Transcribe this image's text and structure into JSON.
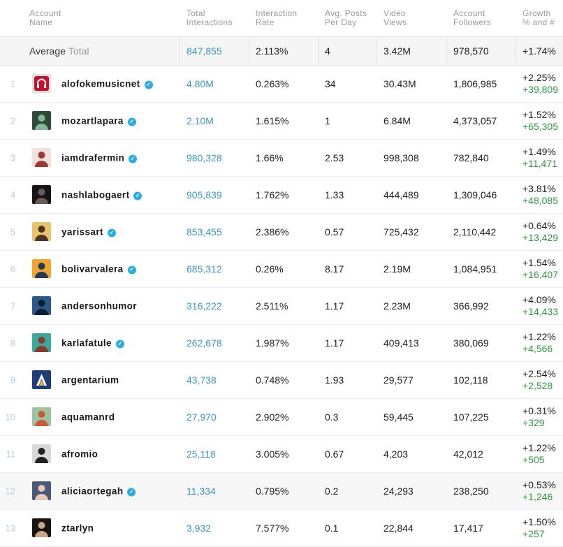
{
  "headers": [
    {
      "l1": "Account",
      "l2": "Name"
    },
    {
      "l1": "Total",
      "l2": "Interactions"
    },
    {
      "l1": "Interaction",
      "l2": "Rate"
    },
    {
      "l1": "Avg. Posts",
      "l2": "Per Day"
    },
    {
      "l1": "Video",
      "l2": "Views"
    },
    {
      "l1": "Account",
      "l2": "Followers"
    },
    {
      "l1": "Growth",
      "l2": "% and #"
    }
  ],
  "average": {
    "label": "Average",
    "sub": "Total",
    "interactions": "847,855",
    "rate": "2.113%",
    "posts": "4",
    "views": "3.42M",
    "followers": "978,570",
    "growth": "+1.74%"
  },
  "rows": [
    {
      "rank": "1",
      "name": "alofokemusicnet",
      "verified": true,
      "interactions": "4.80M",
      "rate": "0.263%",
      "posts": "34",
      "views": "30.43M",
      "followers": "1,806,985",
      "growth_pct": "+2.25%",
      "growth_num": "+39,809",
      "avatar": {
        "bg": "#e0e0e0",
        "fg": "#c8102e",
        "icon": "headphones-icon"
      }
    },
    {
      "rank": "2",
      "name": "mozartlapara",
      "verified": true,
      "interactions": "2.10M",
      "rate": "1.615%",
      "posts": "1",
      "views": "6.84M",
      "followers": "4,373,057",
      "growth_pct": "+1.52%",
      "growth_num": "+65,305",
      "avatar": {
        "bg": "#2f4a3a",
        "fg": "#7fb89a",
        "icon": "person-icon"
      }
    },
    {
      "rank": "3",
      "name": "iamdrafermin",
      "verified": true,
      "interactions": "980,328",
      "rate": "1.66%",
      "posts": "2.53",
      "views": "998,308",
      "followers": "782,840",
      "growth_pct": "+1.49%",
      "growth_num": "+11,471",
      "avatar": {
        "bg": "#f4e2da",
        "fg": "#a03a3a",
        "icon": "person-icon"
      }
    },
    {
      "rank": "4",
      "name": "nashlabogaert",
      "verified": true,
      "interactions": "905,839",
      "rate": "1.762%",
      "posts": "1.33",
      "views": "444,489",
      "followers": "1,309,046",
      "growth_pct": "+3.81%",
      "growth_num": "+48,085",
      "avatar": {
        "bg": "#151515",
        "fg": "#6a5a55",
        "icon": "person-icon"
      }
    },
    {
      "rank": "5",
      "name": "yarissart",
      "verified": true,
      "interactions": "853,455",
      "rate": "2.386%",
      "posts": "0.57",
      "views": "725,432",
      "followers": "2,110,442",
      "growth_pct": "+0.64%",
      "growth_num": "+13,429",
      "avatar": {
        "bg": "#e8c36a",
        "fg": "#4a3526",
        "icon": "person-icon"
      }
    },
    {
      "rank": "6",
      "name": "bolivarvalera",
      "verified": true,
      "interactions": "685,312",
      "rate": "0.26%",
      "posts": "8.17",
      "views": "2.19M",
      "followers": "1,084,951",
      "growth_pct": "+1.54%",
      "growth_num": "+16,407",
      "avatar": {
        "bg": "#f2a52a",
        "fg": "#1f3a5a",
        "icon": "person-icon"
      }
    },
    {
      "rank": "7",
      "name": "andersonhumor",
      "verified": false,
      "interactions": "316,222",
      "rate": "2.511%",
      "posts": "1.17",
      "views": "2.23M",
      "followers": "366,992",
      "growth_pct": "+4.09%",
      "growth_num": "+14,433",
      "avatar": {
        "bg": "#2a5a8a",
        "fg": "#0e1e2e",
        "icon": "person-icon"
      }
    },
    {
      "rank": "8",
      "name": "karlafatule",
      "verified": true,
      "interactions": "262,678",
      "rate": "1.987%",
      "posts": "1.17",
      "views": "409,413",
      "followers": "380,069",
      "growth_pct": "+1.22%",
      "growth_num": "+4,566",
      "avatar": {
        "bg": "#3aa89a",
        "fg": "#8a3a2a",
        "icon": "person-icon"
      }
    },
    {
      "rank": "9",
      "name": "argentarium",
      "verified": false,
      "interactions": "43,738",
      "rate": "0.748%",
      "posts": "1.93",
      "views": "29,577",
      "followers": "102,118",
      "growth_pct": "+2.54%",
      "growth_num": "+2,528",
      "avatar": {
        "bg": "#1c3d7a",
        "fg": "#f0b12a",
        "icon": "letter-a-icon"
      }
    },
    {
      "rank": "10",
      "name": "aquamanrd",
      "verified": false,
      "interactions": "27,970",
      "rate": "2.902%",
      "posts": "0.3",
      "views": "59,445",
      "followers": "107,225",
      "growth_pct": "+0.31%",
      "growth_num": "+329",
      "avatar": {
        "bg": "#9cc4a0",
        "fg": "#c85a3a",
        "icon": "person-icon"
      }
    },
    {
      "rank": "11",
      "name": "afromio",
      "verified": false,
      "interactions": "25,118",
      "rate": "3.005%",
      "posts": "0.67",
      "views": "4,203",
      "followers": "42,012",
      "growth_pct": "+1.22%",
      "growth_num": "+505",
      "avatar": {
        "bg": "#d8d8d8",
        "fg": "#222",
        "icon": "person-icon"
      }
    },
    {
      "rank": "12",
      "name": "aliciaortegah",
      "verified": true,
      "interactions": "11,334",
      "rate": "0.795%",
      "posts": "0.2",
      "views": "24,293",
      "followers": "238,250",
      "growth_pct": "+0.53%",
      "growth_num": "+1,246",
      "avatar": {
        "bg": "#4a5a7a",
        "fg": "#e8c8b8",
        "icon": "person-icon"
      },
      "highlight": true
    },
    {
      "rank": "13",
      "name": "ztarlyn",
      "verified": false,
      "interactions": "3,932",
      "rate": "7.577%",
      "posts": "0.1",
      "views": "22,844",
      "followers": "17,417",
      "growth_pct": "+1.50%",
      "growth_num": "+257",
      "avatar": {
        "bg": "#1a1410",
        "fg": "#c8a888",
        "icon": "person-icon"
      }
    }
  ]
}
